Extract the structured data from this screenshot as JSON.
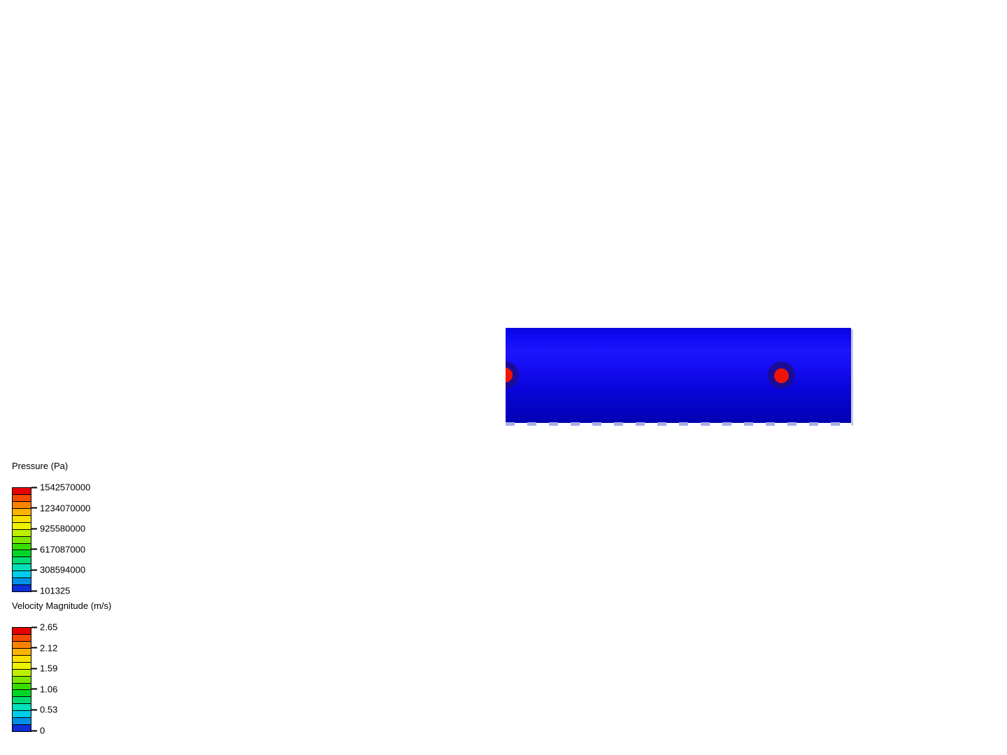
{
  "scene": {
    "background_color": "#ffffff",
    "model": {
      "name": "pipe-cylinder",
      "gradient_stops": [
        "#0805e2 0%",
        "#0f09f2 10%",
        "#1d15fc 24%",
        "#150df2 42%",
        "#0a05dd 62%",
        "#0503c6 82%",
        "#0301b2 100%"
      ],
      "probe_color": "#ee1404",
      "probe_ring_color": "#1b0c97",
      "edge_shadow_color": "#c6c9ea",
      "bottom_dash_color": "#a6aee7"
    }
  },
  "legends": [
    {
      "id": "pressure",
      "title": "Pressure (Pa)",
      "tick_labels": [
        "1542570000",
        "1234070000",
        "925580000",
        "617087000",
        "308594000",
        "101325"
      ],
      "band_colors": [
        "#e60000",
        "#f34b00",
        "#fa8200",
        "#fcb300",
        "#fbdf00",
        "#edf200",
        "#bdef00",
        "#7ce700",
        "#38dd00",
        "#00d626",
        "#00db74",
        "#00e0ba",
        "#00cdea",
        "#0090e6",
        "#0d2ed8"
      ]
    },
    {
      "id": "velocity",
      "title": "Velocity Magnitude (m/s)",
      "tick_labels": [
        "2.65",
        "2.12",
        "1.59",
        "1.06",
        "0.53",
        "0"
      ],
      "band_colors": [
        "#e60000",
        "#f34b00",
        "#fa8200",
        "#fcb300",
        "#fbdf00",
        "#edf200",
        "#bdef00",
        "#7ce700",
        "#38dd00",
        "#00d626",
        "#00db74",
        "#00e0ba",
        "#00cdea",
        "#0090e6",
        "#0d2ed8"
      ]
    }
  ]
}
